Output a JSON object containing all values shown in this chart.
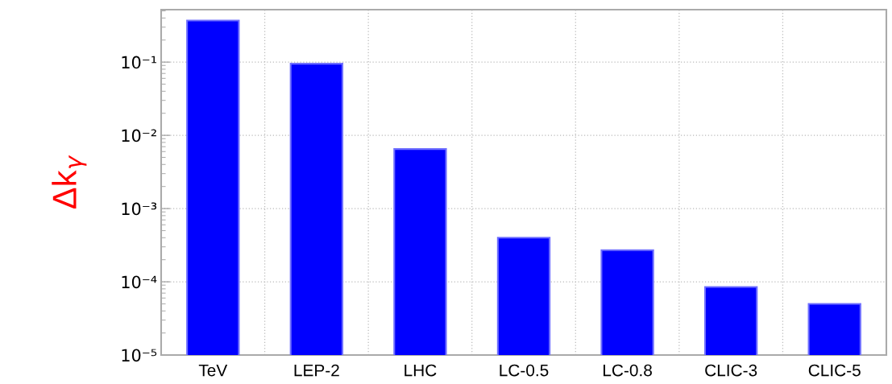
{
  "chart_data": {
    "type": "bar",
    "ylabel": "Δk$_{γ}$",
    "categories": [
      "TeV",
      "LEP-2",
      "LHC",
      "LC-0.5",
      "LC-0.8",
      "CLIC-3",
      "CLIC-5"
    ],
    "values": [
      0.37,
      0.095,
      0.0065,
      0.0004,
      0.00027,
      8.5e-05,
      5e-05
    ],
    "color": "#0000ff",
    "log": true,
    "ylim": [
      1e-05,
      0.52
    ],
    "yticks": [
      {
        "value": 1e-05,
        "label": "10⁻⁵"
      },
      {
        "value": 0.0001,
        "label": "10⁻⁴"
      },
      {
        "value": 0.001,
        "label": "10⁻³"
      },
      {
        "value": 0.01,
        "label": "10⁻²"
      },
      {
        "value": 0.1,
        "label": "10⁻¹"
      }
    ],
    "grid": true
  }
}
